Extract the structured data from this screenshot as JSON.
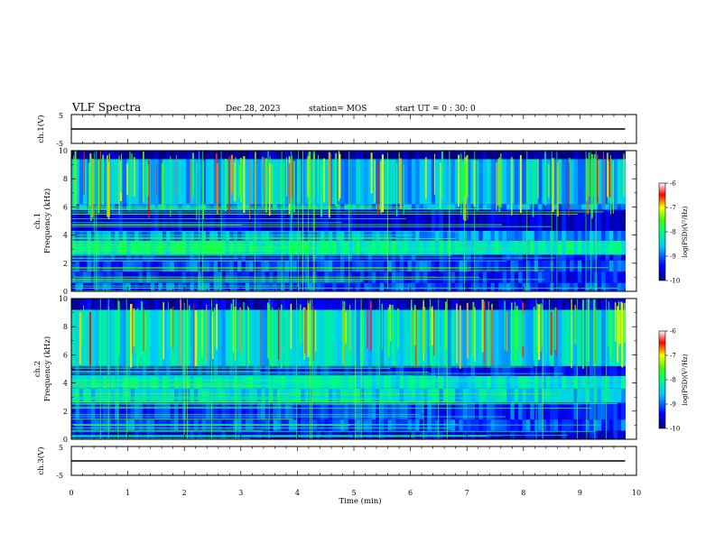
{
  "header": {
    "title": "VLF Spectra",
    "date": "Dec.28, 2023",
    "station": "station= MOS",
    "start": "start  UT =   0 : 30: 0"
  },
  "chart_data": [
    {
      "type": "line",
      "panel": "ch1-voltage",
      "ylabel": "ch.1(V)",
      "ylim": [
        -5,
        5
      ],
      "yticks": [
        5,
        -5
      ],
      "series": [
        {
          "x": [
            0,
            9.8
          ],
          "y": [
            0,
            0
          ]
        }
      ]
    },
    {
      "type": "heatmap",
      "panel": "ch1-spectrogram",
      "ylabel": "ch.1\nFrequency (kHz)",
      "ylim": [
        0,
        10
      ],
      "yticks": [
        0,
        2,
        4,
        6,
        8,
        10
      ],
      "data_extent_min": 9.8,
      "colorbar": {
        "label": "log(PSD)(V²/Hz)",
        "range": [
          -10,
          -6
        ],
        "ticks": [
          -6,
          -7,
          -8,
          -9,
          -10
        ]
      }
    },
    {
      "type": "heatmap",
      "panel": "ch2-spectrogram",
      "ylabel": "ch.2\nFrequency (kHz)",
      "ylim": [
        0,
        10
      ],
      "yticks": [
        0,
        2,
        4,
        6,
        8,
        10
      ],
      "data_extent_min": 9.8,
      "colorbar": {
        "label": "log(PSD)(V²/Hz)",
        "range": [
          -10,
          -6
        ],
        "ticks": [
          -6,
          -7,
          -8,
          -9,
          -10
        ]
      }
    },
    {
      "type": "line",
      "panel": "ch3-voltage",
      "ylabel": "ch.3(V)",
      "ylim": [
        -5,
        5
      ],
      "yticks": [
        5,
        -5
      ],
      "series": [
        {
          "x": [
            0,
            9.8
          ],
          "y": [
            0,
            0
          ]
        }
      ]
    }
  ],
  "x_axis": {
    "label": "Time  (min)",
    "range": [
      0,
      10
    ],
    "ticks": [
      0,
      1,
      2,
      3,
      4,
      5,
      6,
      7,
      8,
      9,
      10
    ]
  }
}
